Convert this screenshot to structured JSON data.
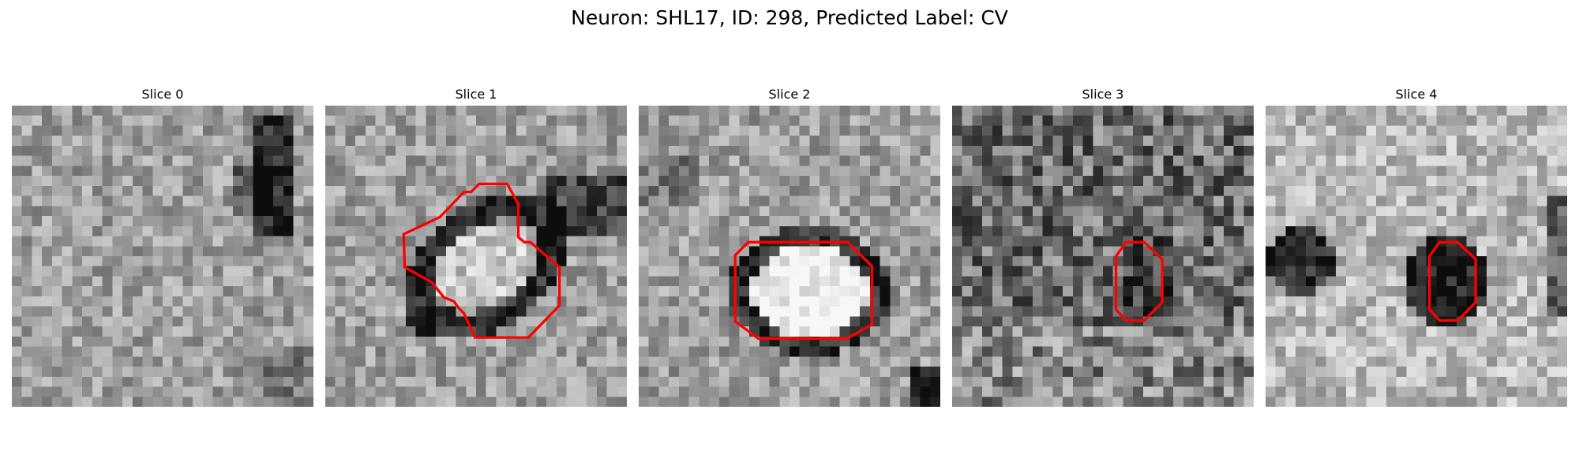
{
  "figure": {
    "title": "Neuron: SHL17, ID: 298, Predicted Label: CV"
  },
  "panels": [
    {
      "title": "Slice 0",
      "contour": false,
      "texture_seed": 11,
      "image_type": "grayscale-microscopy-noise"
    },
    {
      "title": "Slice 1",
      "contour": true,
      "texture_seed": 23,
      "image_type": "grayscale-microscopy-with-dark-ring"
    },
    {
      "title": "Slice 2",
      "contour": true,
      "texture_seed": 37,
      "image_type": "grayscale-microscopy-with-bright-disc"
    },
    {
      "title": "Slice 3",
      "contour": true,
      "texture_seed": 51,
      "image_type": "grayscale-microscopy-noise"
    },
    {
      "title": "Slice 4",
      "contour": true,
      "texture_seed": 67,
      "image_type": "grayscale-microscopy-with-dark-blobs"
    }
  ],
  "colors": {
    "contour": "#ff0000"
  }
}
